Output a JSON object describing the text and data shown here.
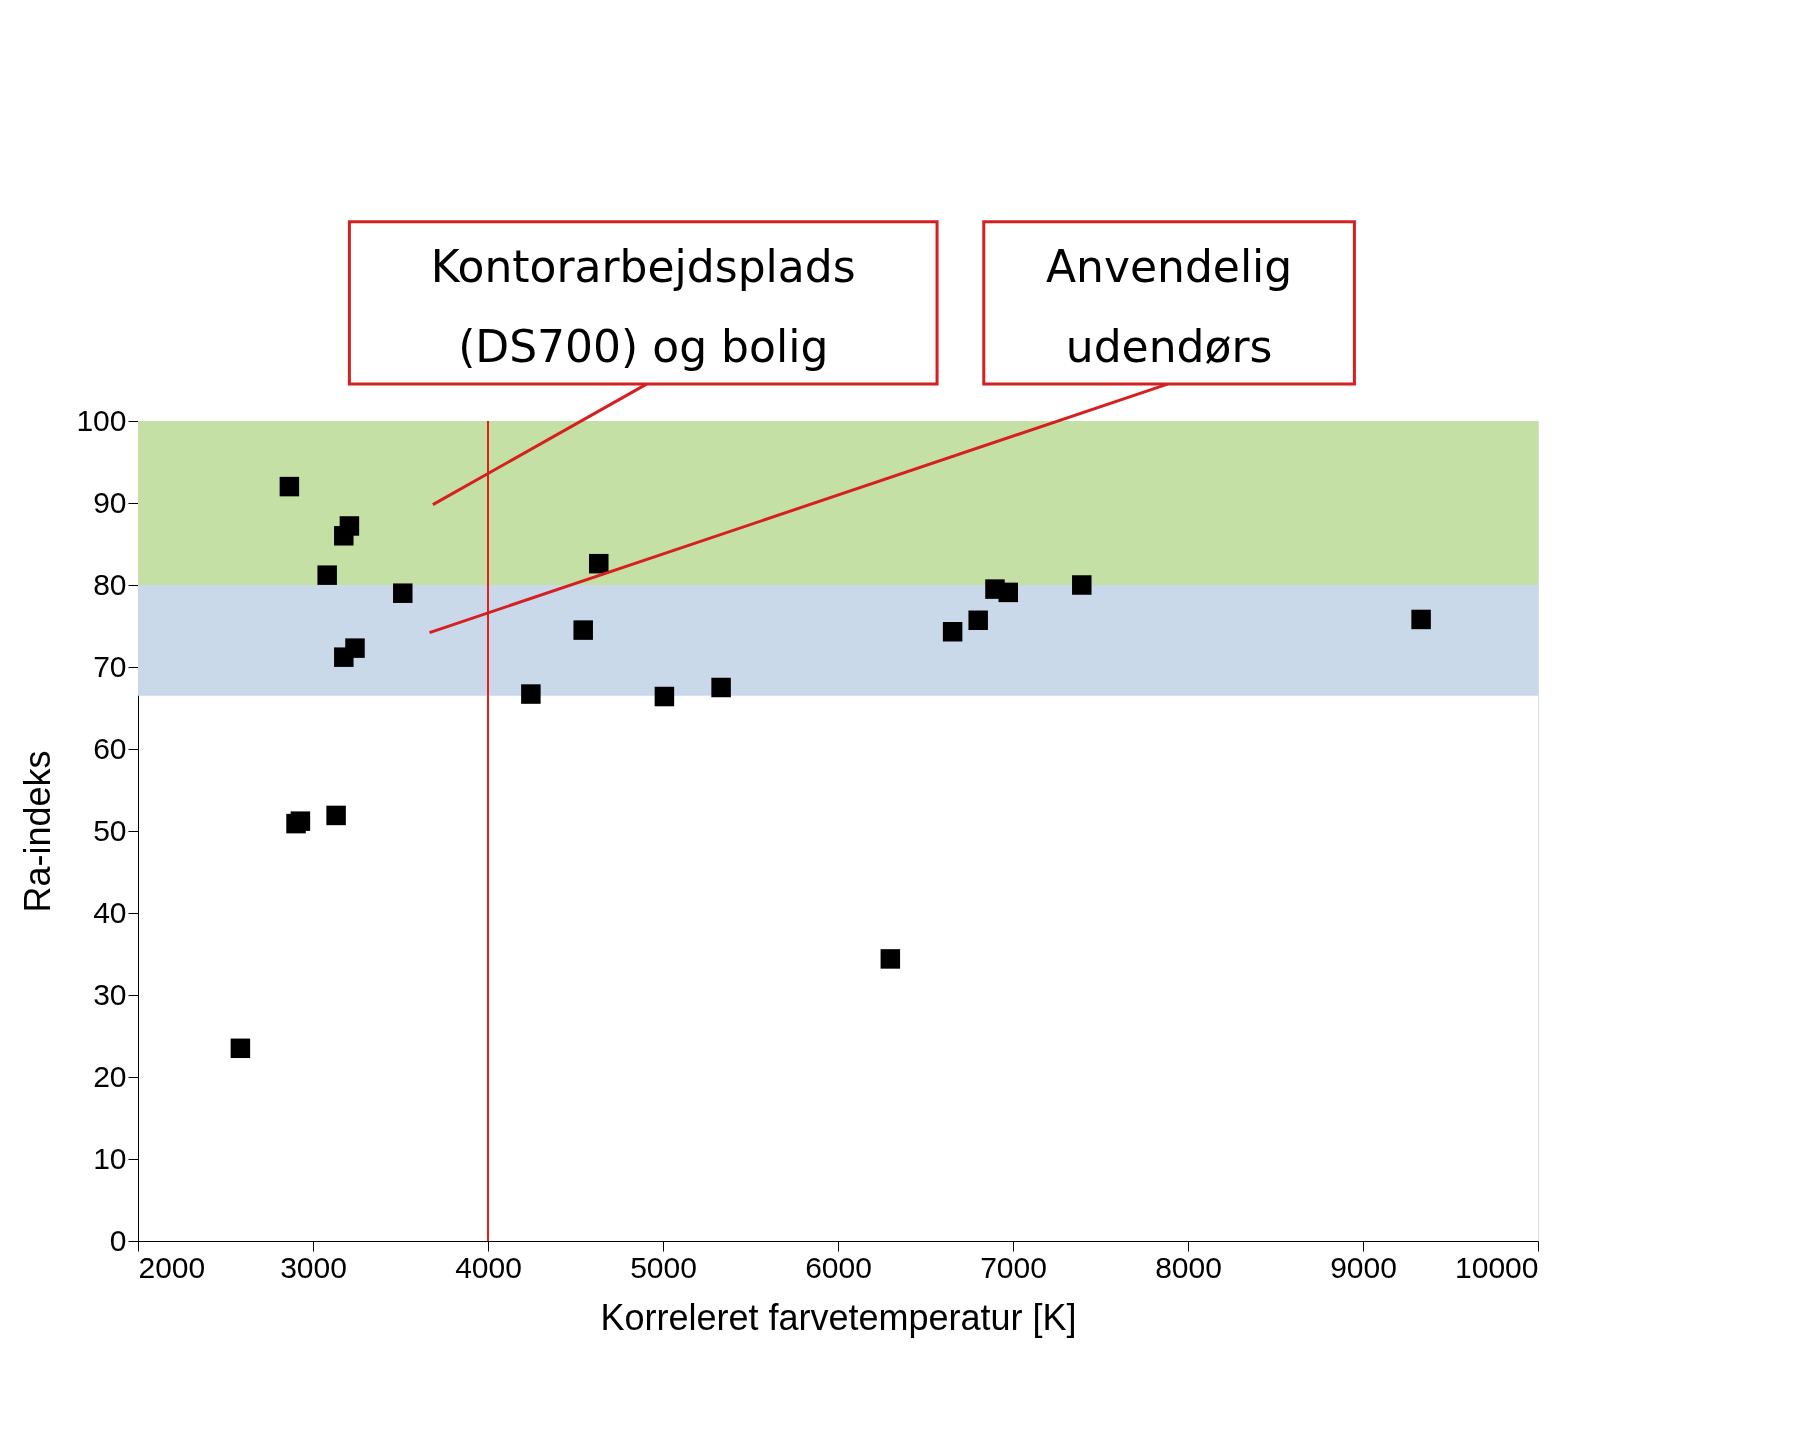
{
  "chart_data": {
    "type": "scatter",
    "xlabel": "Korreleret farvetemperatur [K]",
    "ylabel": "Ra-indeks",
    "x": [
      2865,
      3081,
      3176,
      3208,
      3513,
      3176,
      3240,
      2903,
      2928,
      3132,
      2585,
      4245,
      4544,
      4633,
      5008,
      5332,
      6299,
      6655,
      6801,
      6897,
      6973,
      7393,
      9332
    ],
    "series": [
      {
        "color": "#000000",
        "values": [
          92,
          81.2,
          86,
          87.2,
          79,
          71.2,
          72.3,
          50.9,
          51.2,
          51.9,
          23.5,
          66.7,
          74.5,
          82.6,
          66.4,
          67.5,
          34.4,
          74.3,
          75.7,
          79.5,
          79.1,
          80,
          75.8
        ]
      }
    ],
    "marker": "square",
    "xlim": [
      2000,
      10000
    ],
    "xticks": [
      2000,
      3000,
      4000,
      5000,
      6000,
      7000,
      8000,
      9000,
      10000
    ],
    "ylim": [
      0,
      100
    ],
    "yticks": [
      0,
      10,
      20,
      30,
      40,
      50,
      60,
      70,
      80,
      90,
      100
    ],
    "grid": false,
    "bands": [
      {
        "axis": "y",
        "from": 80,
        "to": 100,
        "color": "#c5e0a5"
      },
      {
        "axis": "y",
        "from": 66.5,
        "to": 80,
        "color": "#c9d9ea"
      }
    ],
    "ref_lines": [
      {
        "axis": "x",
        "value": 4000,
        "color": "#e02020"
      }
    ],
    "annotations": [
      "Kontorarbejdsplads\n(DS700) og bolig",
      "Anvendelig\nudendørs"
    ]
  }
}
